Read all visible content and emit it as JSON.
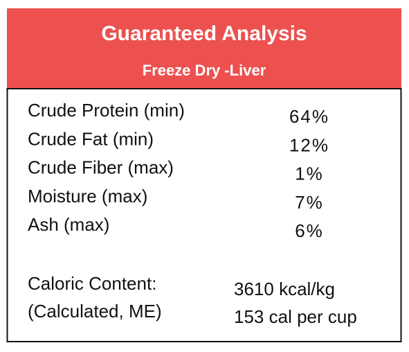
{
  "header": {
    "title": "Guaranteed Analysis",
    "subtitle": "Freeze Dry -Liver"
  },
  "table": {
    "rows": [
      [
        "Crude Protein (min)",
        "64%"
      ],
      [
        "Crude Fat (min)",
        "12%"
      ],
      [
        "Crude Fiber (max)",
        "1%"
      ],
      [
        "Moisture (max)",
        "7%"
      ],
      [
        "Ash (max)",
        "6%"
      ]
    ]
  },
  "calories": {
    "labels": [
      "Caloric Content:",
      "(Calculated, ME)"
    ],
    "values": [
      "3610 kcal/kg",
      "153 cal per cup"
    ]
  }
}
